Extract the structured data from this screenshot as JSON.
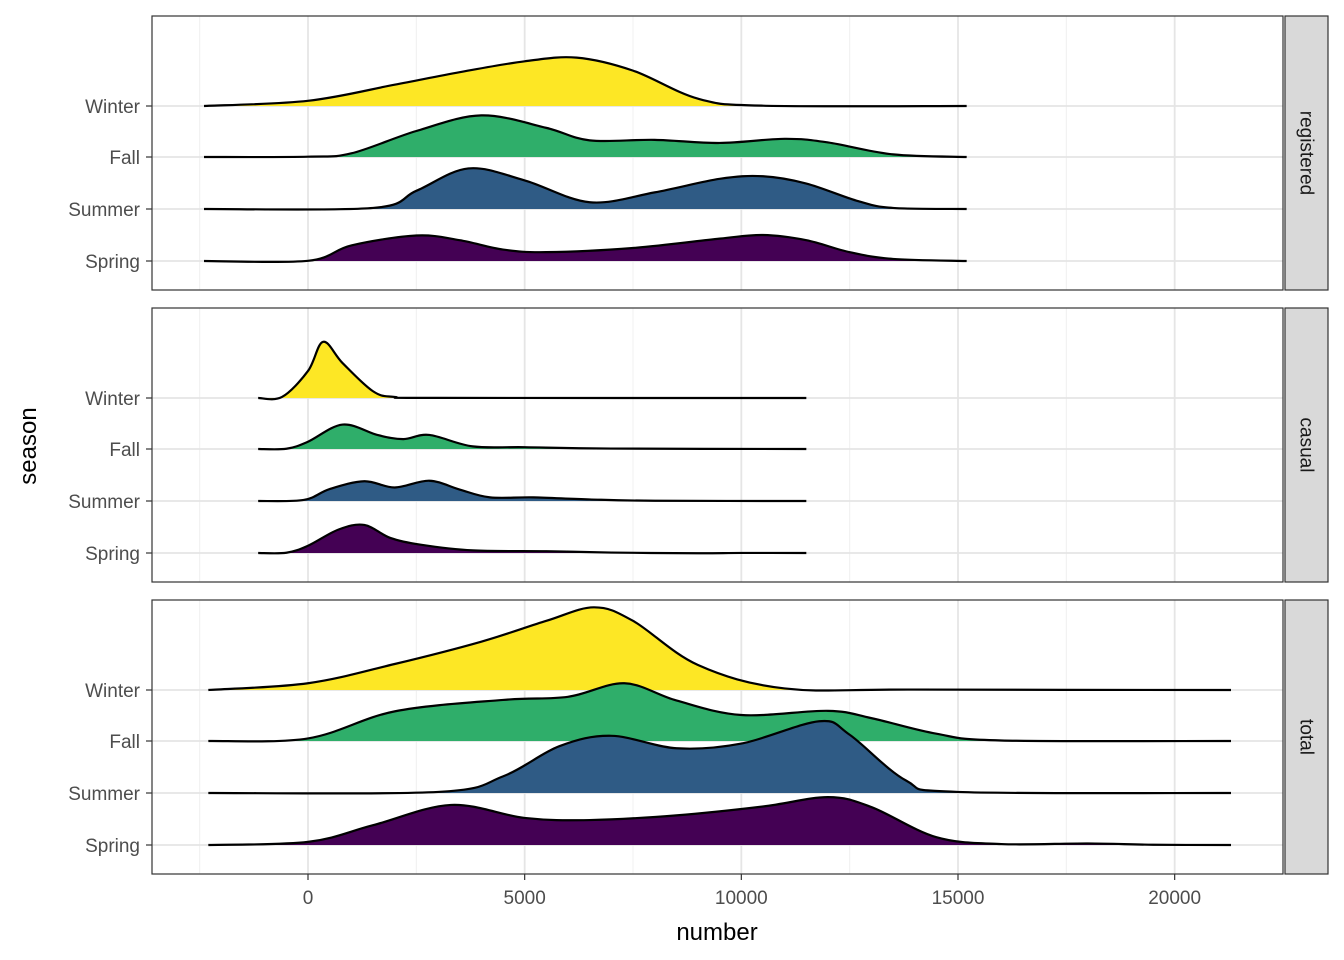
{
  "chart_data": {
    "type": "ridgeline",
    "xlabel": "number",
    "ylabel": "season",
    "x_ticks": [
      0,
      5000,
      10000,
      15000,
      20000
    ],
    "xlim": [
      -3600,
      22500
    ],
    "categories": [
      "Spring",
      "Summer",
      "Fall",
      "Winter"
    ],
    "colors": {
      "Spring": "#440154",
      "Summer": "#2f5b85",
      "Fall": "#2fae6a",
      "Winter": "#fde725"
    },
    "panels": [
      {
        "name": "registered",
        "x_range": [
          -2400,
          15200
        ],
        "ridges": [
          {
            "season": "Spring",
            "points": [
              [
                -2400,
                0
              ],
              [
                0,
                0.004
              ],
              [
                1000,
                0.3
              ],
              [
                2500,
                0.49
              ],
              [
                3500,
                0.4
              ],
              [
                4500,
                0.22
              ],
              [
                5500,
                0.17
              ],
              [
                7500,
                0.25
              ],
              [
                9500,
                0.43
              ],
              [
                10500,
                0.5
              ],
              [
                11500,
                0.4
              ],
              [
                12500,
                0.17
              ],
              [
                13500,
                0.04
              ],
              [
                15200,
                0
              ]
            ]
          },
          {
            "season": "Summer",
            "points": [
              [
                -2400,
                0
              ],
              [
                1500,
                0.02
              ],
              [
                2500,
                0.35
              ],
              [
                3700,
                0.78
              ],
              [
                5000,
                0.55
              ],
              [
                6500,
                0.13
              ],
              [
                8000,
                0.32
              ],
              [
                9500,
                0.58
              ],
              [
                10500,
                0.63
              ],
              [
                11500,
                0.49
              ],
              [
                12700,
                0.15
              ],
              [
                13500,
                0.02
              ],
              [
                15200,
                0
              ]
            ]
          },
          {
            "season": "Fall",
            "points": [
              [
                -2400,
                0
              ],
              [
                0,
                0.006
              ],
              [
                1000,
                0.07
              ],
              [
                2500,
                0.5
              ],
              [
                4000,
                0.8
              ],
              [
                5500,
                0.56
              ],
              [
                6500,
                0.32
              ],
              [
                8000,
                0.33
              ],
              [
                9500,
                0.27
              ],
              [
                11000,
                0.35
              ],
              [
                12000,
                0.28
              ],
              [
                13500,
                0.05
              ],
              [
                15200,
                0
              ]
            ]
          },
          {
            "season": "Winter",
            "points": [
              [
                -2400,
                0
              ],
              [
                0,
                0.1
              ],
              [
                2000,
                0.41
              ],
              [
                3500,
                0.65
              ],
              [
                5000,
                0.86
              ],
              [
                6200,
                0.93
              ],
              [
                7500,
                0.68
              ],
              [
                9000,
                0.14
              ],
              [
                10500,
                0.006
              ],
              [
                15200,
                0
              ]
            ]
          }
        ]
      },
      {
        "name": "casual",
        "x_range": [
          -1150,
          11500
        ],
        "ridges": [
          {
            "season": "Spring",
            "points": [
              [
                -1150,
                0
              ],
              [
                -500,
                0.005
              ],
              [
                0,
                0.14
              ],
              [
                700,
                0.45
              ],
              [
                1300,
                0.54
              ],
              [
                1900,
                0.29
              ],
              [
                2600,
                0.16
              ],
              [
                3800,
                0.05
              ],
              [
                5500,
                0.035
              ],
              [
                7000,
                0.008
              ],
              [
                9000,
                -0.005
              ],
              [
                10000,
                0.001
              ],
              [
                11500,
                0
              ]
            ]
          },
          {
            "season": "Summer",
            "points": [
              [
                -1150,
                0
              ],
              [
                -100,
                0.02
              ],
              [
                500,
                0.23
              ],
              [
                1300,
                0.38
              ],
              [
                2000,
                0.26
              ],
              [
                2800,
                0.39
              ],
              [
                3500,
                0.22
              ],
              [
                4200,
                0.07
              ],
              [
                5200,
                0.07
              ],
              [
                6500,
                0.03
              ],
              [
                8000,
                0.005
              ],
              [
                11500,
                0
              ]
            ]
          },
          {
            "season": "Fall",
            "points": [
              [
                -1150,
                0
              ],
              [
                -500,
                0.005
              ],
              [
                0,
                0.14
              ],
              [
                800,
                0.47
              ],
              [
                1600,
                0.27
              ],
              [
                2200,
                0.19
              ],
              [
                2800,
                0.27
              ],
              [
                3800,
                0.05
              ],
              [
                5000,
                0.035
              ],
              [
                7000,
                0.008
              ],
              [
                11500,
                0
              ]
            ]
          },
          {
            "season": "Winter",
            "points": [
              [
                -1150,
                0
              ],
              [
                -600,
                0.02
              ],
              [
                0,
                0.52
              ],
              [
                350,
                1.08
              ],
              [
                800,
                0.67
              ],
              [
                1500,
                0.13
              ],
              [
                2000,
                0.02
              ],
              [
                3000,
                0.002
              ],
              [
                11500,
                0
              ]
            ]
          }
        ]
      },
      {
        "name": "total",
        "x_range": [
          -2300,
          21300
        ],
        "ridges": [
          {
            "season": "Spring",
            "points": [
              [
                -2300,
                0
              ],
              [
                0,
                0.06
              ],
              [
                1500,
                0.38
              ],
              [
                3300,
                0.77
              ],
              [
                5000,
                0.52
              ],
              [
                6500,
                0.48
              ],
              [
                8500,
                0.57
              ],
              [
                10500,
                0.74
              ],
              [
                12000,
                0.92
              ],
              [
                13000,
                0.73
              ],
              [
                14500,
                0.15
              ],
              [
                16000,
                0.018
              ],
              [
                18000,
                0.03
              ],
              [
                19500,
                0.005
              ],
              [
                21300,
                0
              ]
            ]
          },
          {
            "season": "Summer",
            "points": [
              [
                -2300,
                0
              ],
              [
                3000,
                0.02
              ],
              [
                4500,
                0.32
              ],
              [
                5800,
                0.9
              ],
              [
                7000,
                1.1
              ],
              [
                8500,
                0.86
              ],
              [
                10000,
                0.95
              ],
              [
                11800,
                1.38
              ],
              [
                12500,
                1.12
              ],
              [
                13800,
                0.24
              ],
              [
                15000,
                0.02
              ],
              [
                21300,
                0
              ]
            ]
          },
          {
            "season": "Fall",
            "points": [
              [
                -2300,
                0
              ],
              [
                0,
                0.05
              ],
              [
                2000,
                0.57
              ],
              [
                4500,
                0.79
              ],
              [
                6000,
                0.85
              ],
              [
                7300,
                1.11
              ],
              [
                8500,
                0.78
              ],
              [
                10000,
                0.5
              ],
              [
                12000,
                0.58
              ],
              [
                13000,
                0.44
              ],
              [
                14500,
                0.14
              ],
              [
                16000,
                0.01
              ],
              [
                21300,
                0
              ]
            ]
          },
          {
            "season": "Winter",
            "points": [
              [
                -2300,
                0
              ],
              [
                0,
                0.13
              ],
              [
                2000,
                0.5
              ],
              [
                4000,
                0.93
              ],
              [
                5500,
                1.33
              ],
              [
                6600,
                1.59
              ],
              [
                7500,
                1.33
              ],
              [
                9000,
                0.48
              ],
              [
                11000,
                0.03
              ],
              [
                14000,
                0.008
              ],
              [
                21300,
                0
              ]
            ]
          }
        ]
      }
    ]
  }
}
